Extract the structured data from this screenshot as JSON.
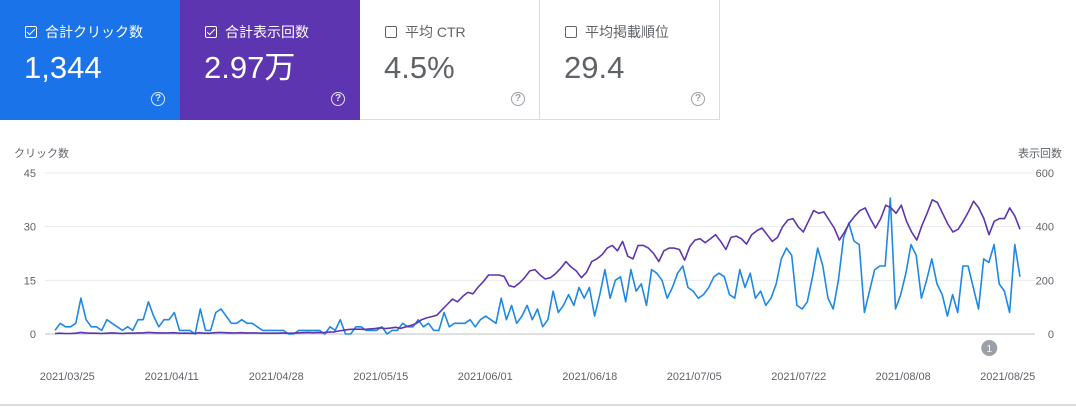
{
  "cards": [
    {
      "label": "合計クリック数",
      "value": "1,344",
      "checked": true,
      "color": "#1a73e8"
    },
    {
      "label": "合計表示回数",
      "value": "2.97万",
      "checked": true,
      "color": "#5e35b1"
    },
    {
      "label": "平均 CTR",
      "value": "4.5%",
      "checked": false
    },
    {
      "label": "平均掲載順位",
      "value": "29.4",
      "checked": false
    }
  ],
  "help_glyph": "?",
  "annotation": {
    "label": "1",
    "date": "2021/08/22"
  },
  "chart_data": {
    "type": "line",
    "ylabel_left": "クリック数",
    "ylabel_right": "表示回数",
    "y_left_ticks": [
      "0",
      "15",
      "30",
      "45"
    ],
    "y_right_ticks": [
      "0",
      "200",
      "400",
      "600"
    ],
    "ylim_left": [
      0,
      45
    ],
    "ylim_right": [
      0,
      600
    ],
    "x_tick_labels": [
      "2021/03/25",
      "2021/04/11",
      "2021/04/28",
      "2021/05/15",
      "2021/06/01",
      "2021/06/18",
      "2021/07/05",
      "2021/07/22",
      "2021/08/08",
      "2021/08/25"
    ],
    "x_start": "2021/03/23",
    "x_end": "2021/08/27",
    "grid": true,
    "series": [
      {
        "name": "合計クリック数",
        "axis": "left",
        "color": "#1e88e5",
        "values": [
          1,
          3,
          2,
          2,
          3,
          10,
          4,
          2,
          2,
          1,
          4,
          3,
          2,
          1,
          2,
          1,
          4,
          4,
          9,
          5,
          2,
          4,
          4,
          6,
          1,
          1,
          1,
          0,
          7,
          1,
          1,
          6,
          7,
          5,
          3,
          3,
          4,
          3,
          3,
          2,
          1,
          1,
          1,
          1,
          1,
          0,
          0,
          1,
          1,
          1,
          1,
          1,
          0,
          2,
          1,
          4,
          0,
          0,
          2,
          2,
          1,
          1,
          1,
          2,
          0,
          1,
          1,
          3,
          2,
          2,
          4,
          2,
          3,
          1,
          1,
          6,
          2,
          3,
          3,
          3,
          4,
          2,
          4,
          5,
          4,
          3,
          10,
          4,
          8,
          3,
          5,
          8,
          4,
          7,
          2,
          4,
          12,
          6,
          8,
          11,
          8,
          13,
          10,
          13,
          5,
          11,
          18,
          10,
          15,
          16,
          9,
          18,
          12,
          14,
          8,
          18,
          17,
          15,
          10,
          13,
          17,
          19,
          13,
          12,
          10,
          11,
          13,
          16,
          17,
          16,
          11,
          10,
          18,
          13,
          17,
          10,
          12,
          8,
          10,
          14,
          21,
          24,
          22,
          8,
          7,
          9,
          16,
          24,
          19,
          10,
          7,
          15,
          27,
          31,
          26,
          25,
          6,
          12,
          18,
          19,
          19,
          38,
          7,
          11,
          17,
          25,
          22,
          10,
          15,
          21,
          14,
          11,
          5,
          11,
          6,
          19,
          19,
          13,
          7,
          21,
          20,
          25,
          14,
          12,
          6,
          25,
          16
        ]
      },
      {
        "name": "合計表示回数",
        "axis": "right",
        "color": "#5e35b1",
        "values": [
          2,
          3,
          2,
          2,
          3,
          6,
          4,
          3,
          3,
          2,
          3,
          4,
          3,
          2,
          3,
          3,
          4,
          4,
          6,
          5,
          4,
          4,
          4,
          5,
          3,
          3,
          3,
          2,
          5,
          3,
          3,
          5,
          6,
          5,
          4,
          4,
          5,
          4,
          4,
          4,
          3,
          3,
          3,
          3,
          4,
          3,
          3,
          4,
          5,
          6,
          5,
          6,
          5,
          7,
          8,
          11,
          14,
          17,
          18,
          18,
          17,
          19,
          20,
          23,
          20,
          22,
          25,
          21,
          27,
          32,
          39,
          53,
          60,
          65,
          70,
          90,
          110,
          130,
          120,
          140,
          155,
          150,
          175,
          195,
          220,
          220,
          220,
          215,
          180,
          175,
          190,
          210,
          235,
          240,
          220,
          205,
          210,
          225,
          245,
          270,
          250,
          235,
          210,
          230,
          270,
          280,
          295,
          320,
          330,
          310,
          345,
          290,
          280,
          330,
          330,
          320,
          300,
          270,
          310,
          320,
          320,
          315,
          275,
          325,
          350,
          355,
          340,
          355,
          370,
          345,
          315,
          360,
          365,
          355,
          335,
          370,
          385,
          395,
          370,
          345,
          360,
          400,
          425,
          430,
          400,
          380,
          420,
          460,
          450,
          455,
          425,
          395,
          350,
          380,
          415,
          440,
          460,
          470,
          430,
          395,
          430,
          480,
          470,
          450,
          480,
          420,
          380,
          350,
          405,
          450,
          500,
          490,
          450,
          410,
          380,
          390,
          420,
          455,
          495,
          470,
          430,
          370,
          420,
          430,
          430,
          470,
          440,
          390
        ]
      }
    ]
  }
}
